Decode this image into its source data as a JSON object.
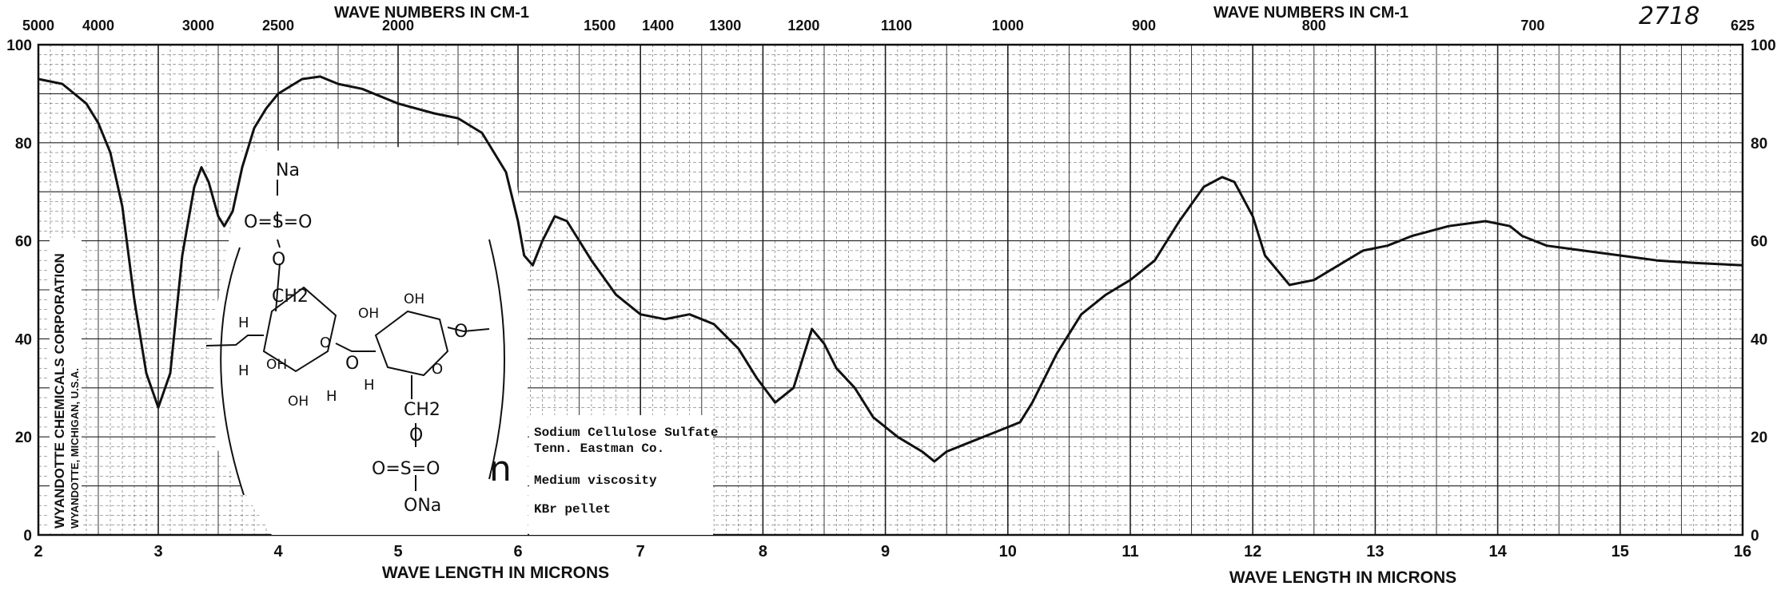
{
  "chart_data": {
    "type": "line",
    "title": "",
    "top_axis_title_left": "WAVE NUMBERS IN CM-1",
    "top_axis_title_right": "WAVE NUMBERS IN CM-1",
    "bottom_axis_title_left": "WAVE LENGTH IN MICRONS",
    "bottom_axis_title_right": "WAVE LENGTH IN MICRONS",
    "spectrum_number": "2718",
    "xlim": [
      2,
      16
    ],
    "ylim": [
      0,
      100
    ],
    "x_ticks": [
      2,
      3,
      4,
      5,
      6,
      7,
      8,
      9,
      10,
      11,
      12,
      13,
      14,
      15,
      16
    ],
    "y_ticks_left": [
      0,
      20,
      40,
      60,
      80,
      100
    ],
    "y_ticks_right": [
      0,
      20,
      40,
      60,
      80,
      100
    ],
    "wavenumber_ticks": [
      {
        "label": "5000",
        "micron": 2.0
      },
      {
        "label": "4000",
        "micron": 2.5
      },
      {
        "label": "3000",
        "micron": 3.333
      },
      {
        "label": "2500",
        "micron": 4.0
      },
      {
        "label": "2000",
        "micron": 5.0
      },
      {
        "label": "1500",
        "micron": 6.667
      },
      {
        "label": "1400",
        "micron": 7.143
      },
      {
        "label": "1300",
        "micron": 7.692
      },
      {
        "label": "1200",
        "micron": 8.333
      },
      {
        "label": "1100",
        "micron": 9.091
      },
      {
        "label": "1000",
        "micron": 10.0
      },
      {
        "label": "900",
        "micron": 11.111
      },
      {
        "label": "800",
        "micron": 12.5
      },
      {
        "label": "700",
        "micron": 14.286
      },
      {
        "label": "625",
        "micron": 16.0
      }
    ],
    "series": [
      {
        "x": [
          2.0,
          2.2,
          2.4,
          2.5,
          2.6,
          2.7,
          2.8,
          2.9,
          3.0,
          3.1,
          3.2,
          3.3,
          3.36,
          3.42,
          3.5,
          3.55,
          3.62,
          3.7,
          3.8,
          3.9,
          4.0,
          4.2,
          4.35,
          4.5,
          4.7,
          5.0,
          5.3,
          5.5,
          5.7,
          5.9,
          6.0,
          6.05,
          6.12,
          6.2,
          6.3,
          6.4,
          6.6,
          6.8,
          7.0,
          7.2,
          7.4,
          7.6,
          7.8,
          7.95,
          8.1,
          8.25,
          8.4,
          8.5,
          8.6,
          8.75,
          8.9,
          9.1,
          9.3,
          9.4,
          9.5,
          9.7,
          9.9,
          10.1,
          10.2,
          10.4,
          10.6,
          10.8,
          11.0,
          11.2,
          11.4,
          11.6,
          11.75,
          11.85,
          12.0,
          12.1,
          12.3,
          12.5,
          12.7,
          12.9,
          13.1,
          13.3,
          13.6,
          13.9,
          14.1,
          14.2,
          14.4,
          14.7,
          15.0,
          15.3,
          15.6,
          16.0
        ],
        "y": [
          93,
          92,
          88,
          84,
          78,
          67,
          48,
          33,
          26,
          33,
          57,
          71,
          75,
          72,
          65,
          63,
          66,
          75,
          83,
          87,
          90,
          93,
          93.5,
          92,
          91,
          88,
          86,
          85,
          82,
          74,
          64,
          57,
          55,
          60,
          65,
          64,
          56,
          49,
          45,
          44,
          45,
          43,
          38,
          32,
          27,
          30,
          42,
          39,
          34,
          30,
          24,
          20,
          17,
          15,
          17,
          19,
          21,
          23,
          27,
          37,
          45,
          49,
          52,
          56,
          64,
          71,
          73,
          72,
          65,
          57,
          51,
          52,
          55,
          58,
          59,
          61,
          63,
          64,
          63,
          61,
          59,
          58,
          57,
          56,
          55.5,
          55
        ]
      }
    ],
    "sample_lines": [
      "Sodium Cellulose Sulfate",
      "Tenn. Eastman Co.",
      "Medium viscosity",
      "KBr pellet"
    ],
    "company_vertical": "WYANDOTTE CHEMICALS CORPORATION",
    "company_city": "WYANDOTTE, MICHIGAN, U.S.A.",
    "structure_labels": {
      "na_top": "Na",
      "o_s_o_top": "O=S=O",
      "o_top": "O",
      "ch2_top": "CH2",
      "h_a": "H",
      "h_b": "H",
      "h_c": "H",
      "h_d": "H",
      "oh_a": "OH",
      "oh_b": "OH",
      "oh_c": "OH",
      "oh_d": "OH",
      "o_bridge1": "O",
      "o_bridge2": "O",
      "o_ring1": "O",
      "o_ring2": "O",
      "ch2_bottom": "CH2",
      "o_bottom": "O",
      "o_s_o_bottom": "O=S=O",
      "ona_bottom": "ONa",
      "n": "n"
    },
    "grid": true,
    "legend": "none"
  }
}
